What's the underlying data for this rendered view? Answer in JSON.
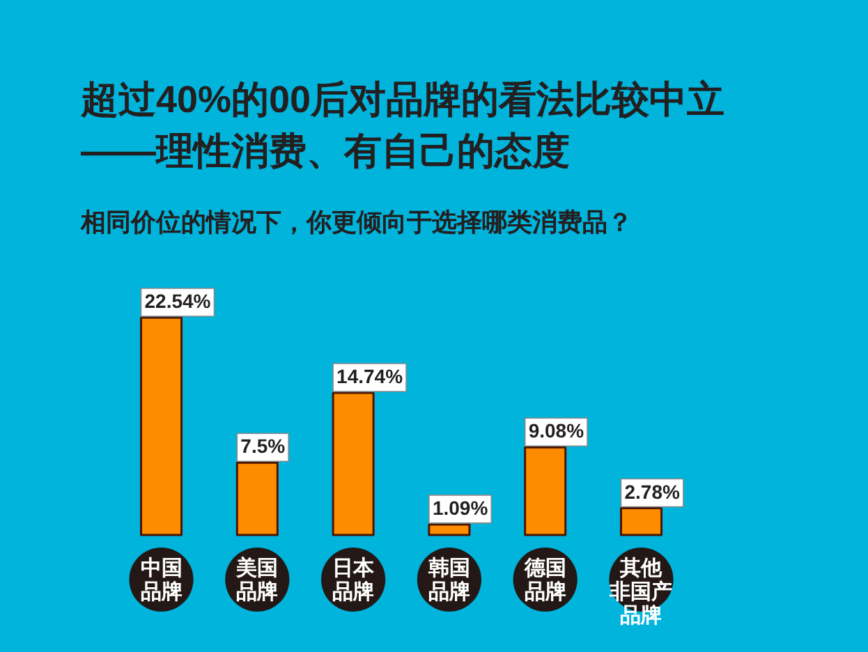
{
  "chart_data": {
    "type": "bar",
    "title": "超过40%的00后对品牌的看法比较中立\n——理性消费、有自己的态度",
    "subtitle": "相同价位的情况下，你更倾向于选择哪类消费品？",
    "categories": [
      "中国品牌",
      "美国品牌",
      "日本品牌",
      "韩国品牌",
      "德国品牌",
      "其他非国产品牌"
    ],
    "values": [
      22.54,
      7.5,
      14.74,
      1.09,
      9.08,
      2.78
    ],
    "value_labels": [
      "22.54%",
      "7.5%",
      "14.74%",
      "1.09%",
      "9.08%",
      "2.78%"
    ],
    "color": "#ff8c00",
    "tick_labels": "x"
  }
}
